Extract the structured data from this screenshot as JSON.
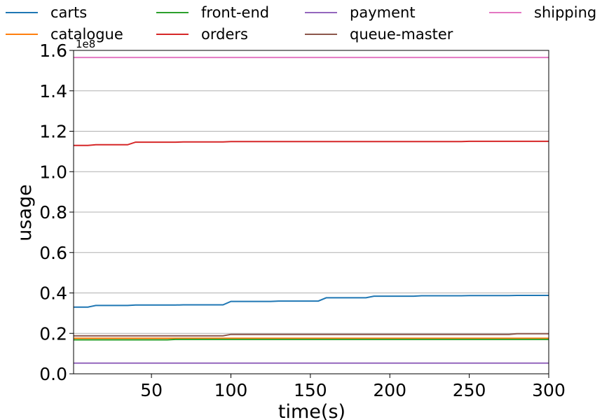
{
  "chart_data": {
    "type": "line",
    "xlabel": "time(s)",
    "ylabel": "usage",
    "y_offset_label": "1e8",
    "xlim": [
      1,
      300
    ],
    "ylim": [
      0,
      160000000.0
    ],
    "xticks": [
      50,
      100,
      150,
      200,
      250,
      300
    ],
    "yticks": [
      0,
      20000000.0,
      40000000.0,
      60000000.0,
      80000000.0,
      100000000.0,
      120000000.0,
      140000000.0,
      160000000.0
    ],
    "ytick_labels": [
      "0.0",
      "0.2",
      "0.4",
      "0.6",
      "0.8",
      "1.0",
      "1.2",
      "1.4",
      "1.6"
    ],
    "grid": "horizontal",
    "legend": "top, 4 columns, outside plot",
    "series": [
      {
        "name": "carts",
        "color": "#1f77b4",
        "x": [
          1,
          10,
          15,
          35,
          40,
          65,
          70,
          95,
          100,
          125,
          130,
          155,
          160,
          185,
          190,
          215,
          220,
          245,
          250,
          275,
          280,
          300
        ],
        "y": [
          33000000,
          33000000,
          33800000,
          33800000,
          34000000,
          34000000,
          34100000,
          34100000,
          35800000,
          35800000,
          36000000,
          36000000,
          37600000,
          37600000,
          38400000,
          38400000,
          38600000,
          38600000,
          38700000,
          38700000,
          38800000,
          38800000
        ]
      },
      {
        "name": "catalogue",
        "color": "#ff7f0e",
        "x": [
          1,
          300
        ],
        "y": [
          17600000,
          17600000
        ]
      },
      {
        "name": "front-end",
        "color": "#2ca02c",
        "x": [
          1,
          60,
          65,
          300
        ],
        "y": [
          16800000,
          16800000,
          17000000,
          17000000
        ]
      },
      {
        "name": "orders",
        "color": "#d62728",
        "x": [
          1,
          10,
          15,
          35,
          40,
          65,
          70,
          95,
          100,
          245,
          250,
          300
        ],
        "y": [
          113000000,
          113000000,
          113300000,
          113300000,
          114600000,
          114600000,
          114700000,
          114700000,
          114900000,
          114900000,
          115000000,
          115000000
        ]
      },
      {
        "name": "payment",
        "color": "#9467bd",
        "x": [
          1,
          300
        ],
        "y": [
          5300000,
          5300000
        ]
      },
      {
        "name": "queue-master",
        "color": "#8c564b",
        "x": [
          1,
          95,
          100,
          275,
          280,
          300
        ],
        "y": [
          18800000,
          18800000,
          19500000,
          19500000,
          19800000,
          19800000
        ]
      },
      {
        "name": "shipping",
        "color": "#e377c2",
        "x": [
          1,
          300
        ],
        "y": [
          156500000,
          156500000
        ]
      }
    ]
  }
}
